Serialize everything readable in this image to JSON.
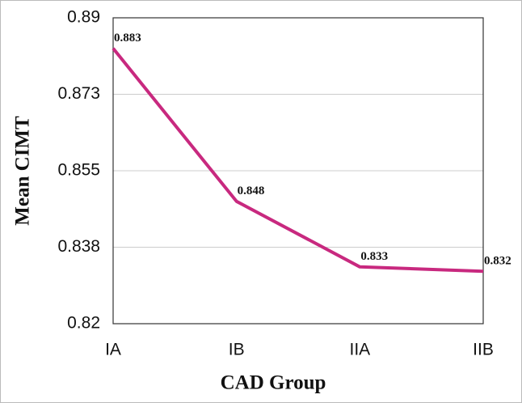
{
  "chart_data": {
    "type": "line",
    "xlabel": "CAD Group",
    "ylabel": "Mean CIMT",
    "categories": [
      "IA",
      "IB",
      "IIA",
      "IIB"
    ],
    "series": [
      {
        "name": "Mean CIMT",
        "color": "#c8297f",
        "values": [
          0.883,
          0.848,
          0.833,
          0.832
        ]
      }
    ],
    "ylim": [
      0.82,
      0.89
    ],
    "yticks": [
      0.82,
      {
        "value": 0.8375,
        "label": "0.838"
      },
      0.855,
      {
        "value": 0.8725,
        "label": "0.873"
      },
      0.89
    ],
    "grid": true
  }
}
